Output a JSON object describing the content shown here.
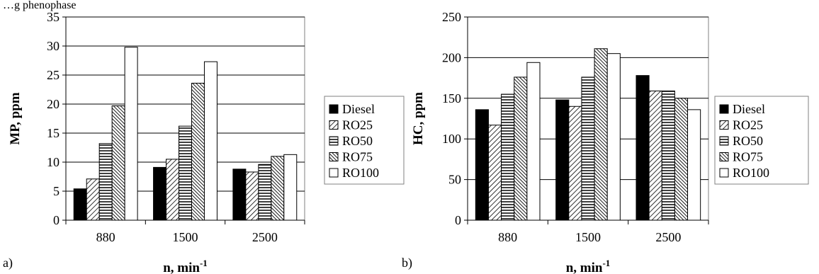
{
  "caption_fragment": "…g phenophase",
  "patterns": {
    "Diesel": "solid",
    "RO25": "diagonal",
    "RO50": "horizontal",
    "RO75": "dense-diagonal",
    "RO100": "empty"
  },
  "chart_data": [
    {
      "panel_label": "a)",
      "type": "bar",
      "categories": [
        "880",
        "1500",
        "2500"
      ],
      "xlabel": "n, min",
      "xlabel_sup": "-1",
      "ylabel": "MP, ppm",
      "ylim": [
        0,
        35
      ],
      "yticks": [
        0,
        5,
        10,
        15,
        20,
        25,
        30,
        35
      ],
      "grid": true,
      "legend_position": "right",
      "series": [
        {
          "name": "Diesel",
          "values": [
            5.4,
            9.1,
            8.8
          ]
        },
        {
          "name": "RO25",
          "values": [
            7.1,
            10.5,
            8.3
          ]
        },
        {
          "name": "RO50",
          "values": [
            13.2,
            16.2,
            9.6
          ]
        },
        {
          "name": "RO75",
          "values": [
            19.7,
            23.6,
            11.0
          ]
        },
        {
          "name": "RO100",
          "values": [
            29.8,
            27.3,
            11.3
          ]
        }
      ]
    },
    {
      "panel_label": "b)",
      "type": "bar",
      "categories": [
        "880",
        "1500",
        "2500"
      ],
      "xlabel": "n, min",
      "xlabel_sup": "-1",
      "ylabel": "HC, ppm",
      "ylim": [
        0,
        250
      ],
      "yticks": [
        0,
        50,
        100,
        150,
        200,
        250
      ],
      "grid": true,
      "legend_position": "right",
      "series": [
        {
          "name": "Diesel",
          "values": [
            136,
            148,
            178
          ]
        },
        {
          "name": "RO25",
          "values": [
            117,
            140,
            159
          ]
        },
        {
          "name": "RO50",
          "values": [
            155,
            176,
            159
          ]
        },
        {
          "name": "RO75",
          "values": [
            176,
            211,
            150
          ]
        },
        {
          "name": "RO100",
          "values": [
            194,
            205,
            136
          ]
        }
      ]
    }
  ]
}
